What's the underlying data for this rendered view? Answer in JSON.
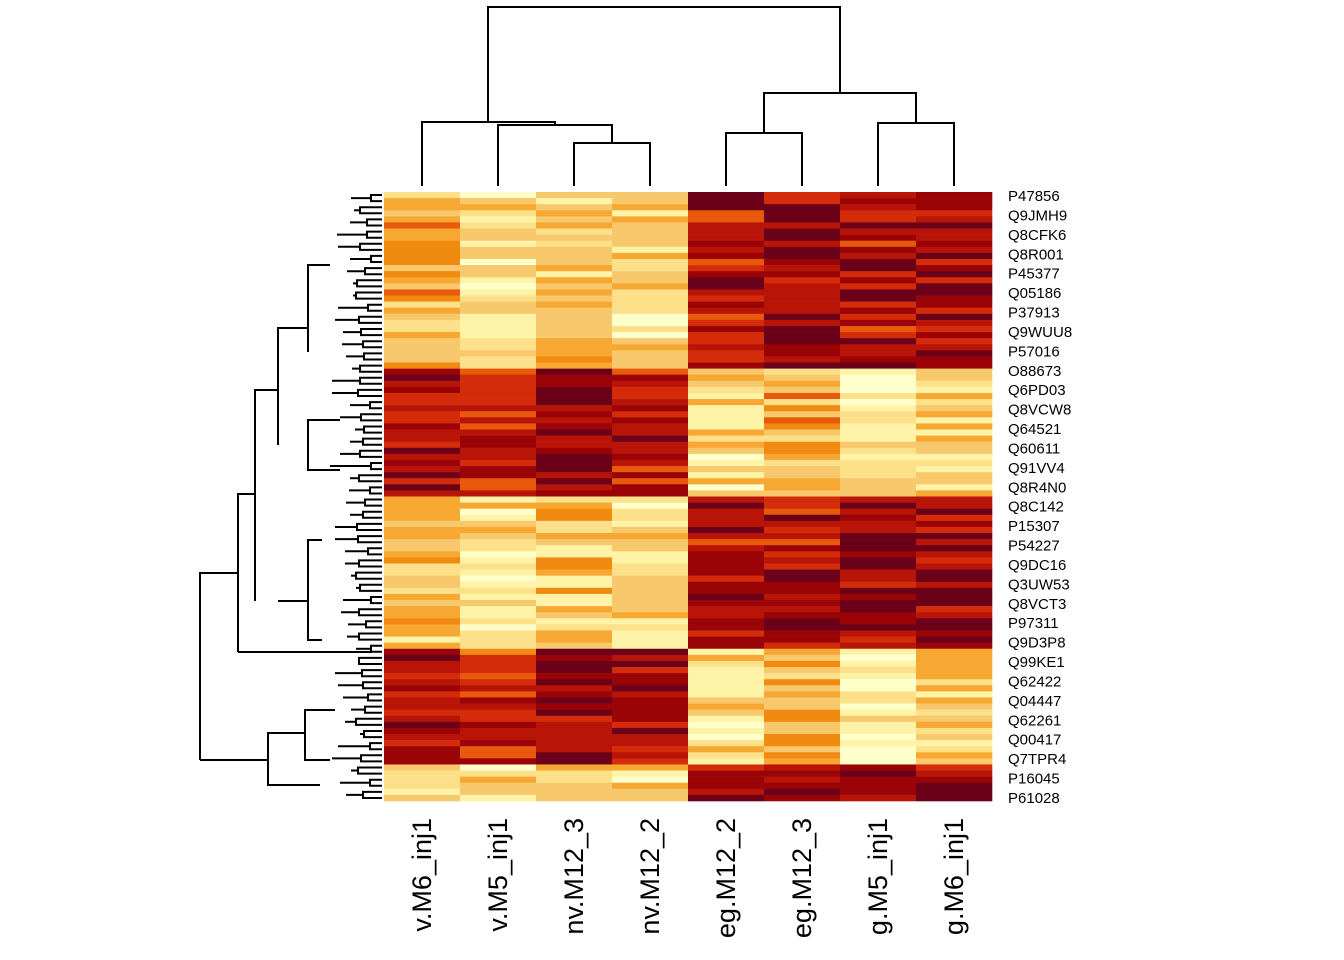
{
  "chart_data": {
    "type": "heatmap",
    "title": "",
    "xlabel": "",
    "ylabel": "",
    "columns": [
      "v.M6_inj1",
      "v.M5_inj1",
      "nv.M12_3",
      "nv.M12_2",
      "eg.M12_2",
      "eg.M12_3",
      "g.M5_inj1",
      "g.M6_inj1"
    ],
    "row_labels": [
      "P47856",
      "Q9JMH9",
      "Q8CFK6",
      "Q8R001",
      "P45377",
      "Q05186",
      "P37913",
      "Q9WUU8",
      "P57016",
      "O88673",
      "Q6PD03",
      "Q8VCW8",
      "Q64521",
      "Q60611",
      "Q91VV4",
      "Q8R4N0",
      "Q8C142",
      "P15307",
      "P54227",
      "Q9DC16",
      "Q3UW53",
      "Q8VCT3",
      "P97311",
      "Q9D3P8",
      "Q99KE1",
      "Q62422",
      "Q04447",
      "Q62261",
      "Q00417",
      "Q7TPR4",
      "P16045",
      "P61028"
    ],
    "color_scale": {
      "palette": [
        "#ffffcc",
        "#fff3a8",
        "#fde08a",
        "#f8c86c",
        "#f6a832",
        "#f18a10",
        "#e8590c",
        "#d42c0a",
        "#b81408",
        "#9b0406",
        "#6b0019"
      ],
      "range": [
        0,
        10
      ]
    },
    "row_blocks": [
      {
        "from": "P47856",
        "to": "P57016",
        "values": [
          4,
          2,
          3,
          2,
          8,
          9,
          8,
          9
        ]
      },
      {
        "from": "O88673",
        "to": "Q8R4N0",
        "values": [
          8,
          8,
          9,
          8,
          2,
          4,
          1,
          3
        ]
      },
      {
        "from": "Q8C142",
        "to": "Q9D3P8",
        "values": [
          3,
          2,
          3,
          2,
          8,
          8,
          9,
          9
        ]
      },
      {
        "from": "Q99KE1",
        "to": "Q7TPR4",
        "values": [
          8,
          7,
          9,
          8,
          2,
          4,
          1,
          3
        ]
      },
      {
        "from": "P16045",
        "to": "P61028",
        "values": [
          3,
          2,
          2,
          2,
          9,
          8,
          9,
          9
        ]
      }
    ]
  }
}
